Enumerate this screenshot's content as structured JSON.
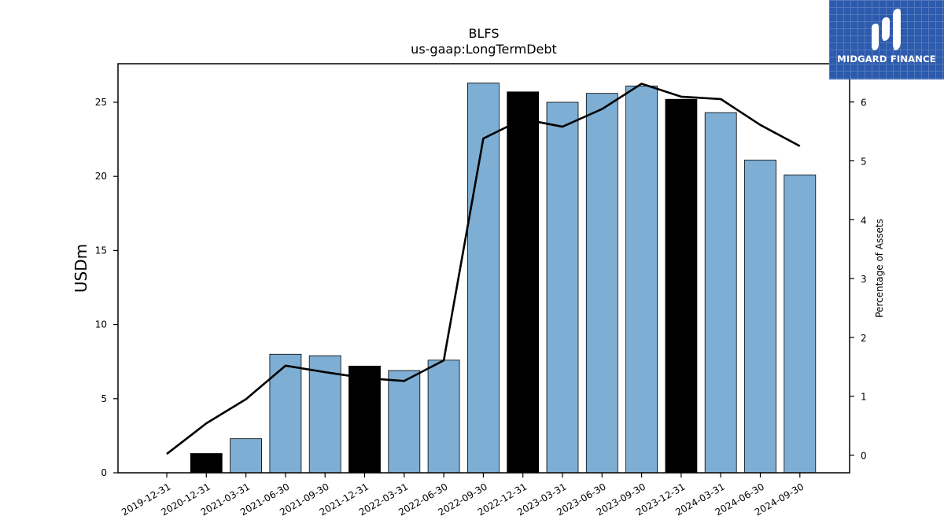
{
  "chart_data": {
    "type": "bar",
    "title": "BLFS",
    "subtitle": "us-gaap:LongTermDebt",
    "ylabel": "USDm",
    "ylabel_right": "Percentage of Assets",
    "ylim": [
      0,
      27.6
    ],
    "ylim_right": [
      -0.3,
      6.65
    ],
    "yticks": [
      0,
      5,
      10,
      15,
      20,
      25
    ],
    "yticks_right": [
      0,
      1,
      2,
      3,
      4,
      5,
      6
    ],
    "categories": [
      "2019-12-31",
      "2020-12-31",
      "2021-03-31",
      "2021-06-30",
      "2021-09-30",
      "2021-12-31",
      "2022-03-31",
      "2022-06-30",
      "2022-09-30",
      "2022-12-31",
      "2023-03-31",
      "2023-06-30",
      "2023-09-30",
      "2023-12-31",
      "2024-03-31",
      "2024-06-30",
      "2024-09-30"
    ],
    "series": [
      {
        "values": [
          0,
          1.3,
          2.3,
          8.0,
          7.9,
          7.2,
          6.9,
          7.6,
          26.3,
          25.7,
          25.0,
          25.6,
          26.1,
          25.2,
          24.3,
          21.1,
          20.1
        ],
        "highlight": [
          false,
          true,
          false,
          false,
          false,
          true,
          false,
          false,
          false,
          true,
          false,
          false,
          false,
          true,
          false,
          false,
          false
        ],
        "color": "#7eaed3",
        "highlight_color": "#000000"
      },
      {
        "type": "line",
        "axis": "right",
        "values": [
          0.02,
          0.54,
          0.95,
          1.52,
          1.41,
          1.31,
          1.26,
          1.61,
          5.38,
          5.71,
          5.58,
          5.88,
          6.31,
          6.09,
          6.05,
          5.61,
          5.25
        ],
        "color": "#000000"
      }
    ],
    "grid": false,
    "legend": "none"
  },
  "logo": {
    "text": "MIDGARD FINANCE",
    "background": "#2c5aad"
  }
}
